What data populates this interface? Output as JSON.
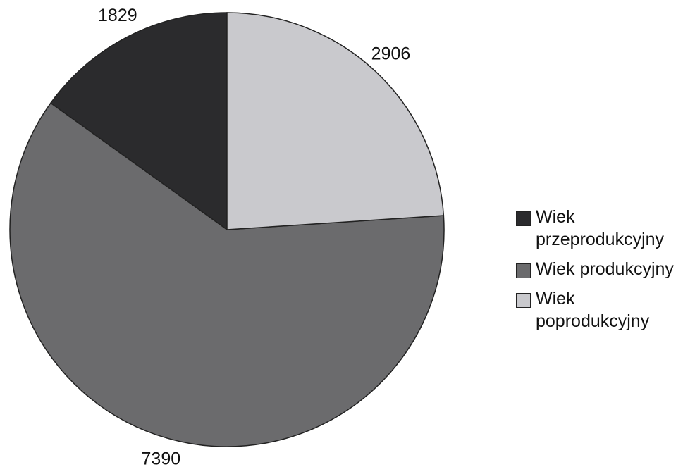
{
  "chart_data": {
    "type": "pie",
    "categories": [
      "Wiek przeprodukcyjny",
      "Wiek produkcyjny",
      "Wiek poprodukcyjny"
    ],
    "values": [
      1829,
      7390,
      2906
    ],
    "colors": [
      "#2b2b2d",
      "#6b6b6d",
      "#c9c9cd"
    ],
    "startangle": 90,
    "counterclock": true,
    "legend": "right"
  }
}
